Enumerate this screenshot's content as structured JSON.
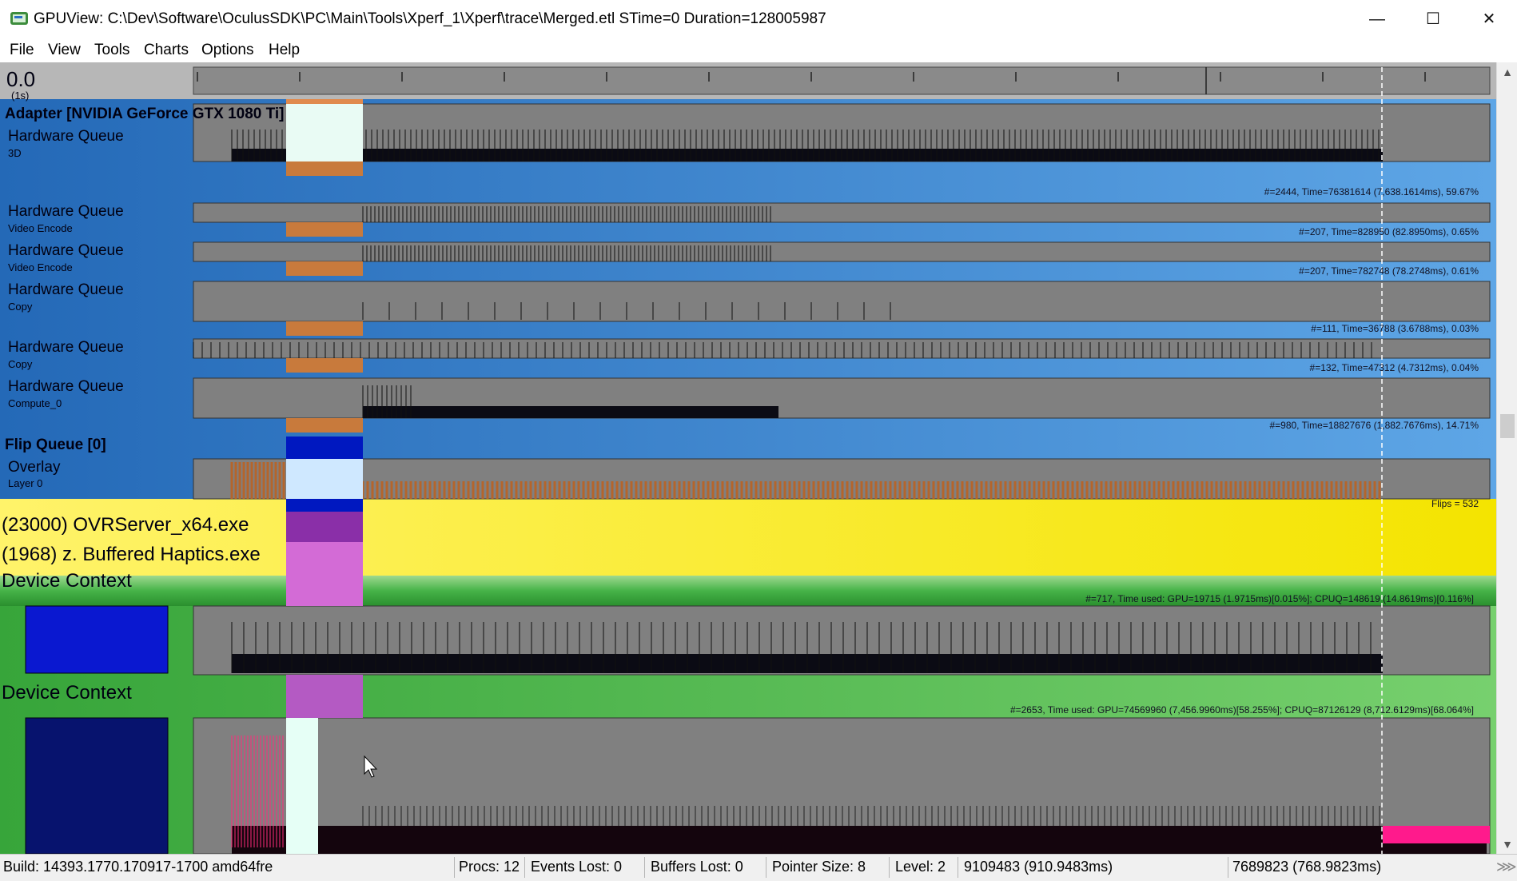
{
  "window": {
    "title": "GPUView: C:\\Dev\\Software\\OculusSDK\\PC\\Main\\Tools\\Xperf_1\\Xperf\\trace\\Merged.etl STime=0 Duration=128005987",
    "controls": {
      "minimize": "—",
      "maximize": "☐",
      "close": "✕"
    }
  },
  "menu": [
    "File",
    "View",
    "Tools",
    "Charts",
    "Options",
    "Help"
  ],
  "timeline": {
    "start": "0.0",
    "unit": "(1s)"
  },
  "adapter": {
    "name": "Adapter [NVIDIA GeForce GTX 1080 Ti]",
    "queues": [
      {
        "title": "Hardware Queue",
        "sub": "3D",
        "stats": "#=2444,  Time=76381614 (7,638.1614ms),  59.67%"
      },
      {
        "title": "Hardware Queue",
        "sub": "Video Encode",
        "stats": "#=207,  Time=828950 (82.8950ms),  0.65%"
      },
      {
        "title": "Hardware Queue",
        "sub": "Video Encode",
        "stats": "#=207,  Time=782748 (78.2748ms),  0.61%"
      },
      {
        "title": "Hardware Queue",
        "sub": "Copy",
        "stats": "#=111,  Time=36788 (3.6788ms),  0.03%"
      },
      {
        "title": "Hardware Queue",
        "sub": "Copy",
        "stats": "#=132,  Time=47312 (4.7312ms),  0.04%"
      },
      {
        "title": "Hardware Queue",
        "sub": "Compute_0",
        "stats": "#=980,  Time=18827676 (1,882.7676ms),  14.71%"
      }
    ]
  },
  "flip_queue": {
    "name": "Flip Queue [0]",
    "overlay_title": "Overlay",
    "overlay_sub": "Layer 0",
    "stats": "Flips = 532"
  },
  "processes": [
    {
      "name": "(23000) OVRServer_x64.exe"
    },
    {
      "name": "(1968) z. Buffered Haptics.exe"
    }
  ],
  "device_contexts": [
    {
      "title": "Device Context",
      "stats": "#=717, Time used: GPU=19715 (1.9715ms)[0.015%]; CPUQ=148619 (14.8619ms)[0.116%]"
    },
    {
      "title": "Device Context",
      "stats": "#=2653, Time used: GPU=74569960 (7,456.9960ms)[58.255%]; CPUQ=87126129 (8,712.6129ms)[68.064%]"
    }
  ],
  "status": {
    "build": "Build: 14393.1770.170917-1700  amd64fre",
    "procs": "Procs: 12",
    "events_lost": "Events Lost: 0",
    "buffers_lost": "Buffers Lost: 0",
    "pointer_size": "Pointer Size: 8",
    "level": "Level: 2",
    "cursor_time": "9109483 (910.9483ms)",
    "selection_time": "7689823 (768.9823ms)"
  },
  "colors": {
    "adapter_blue": "#2f7fc4",
    "flip_yellow": "#fdf04a",
    "process_green": "#2f9a33",
    "selection_orange": "#e08a4e",
    "track_gray": "#808080",
    "flip_navy": "#0018c0",
    "magenta": "#ff1a8c"
  }
}
